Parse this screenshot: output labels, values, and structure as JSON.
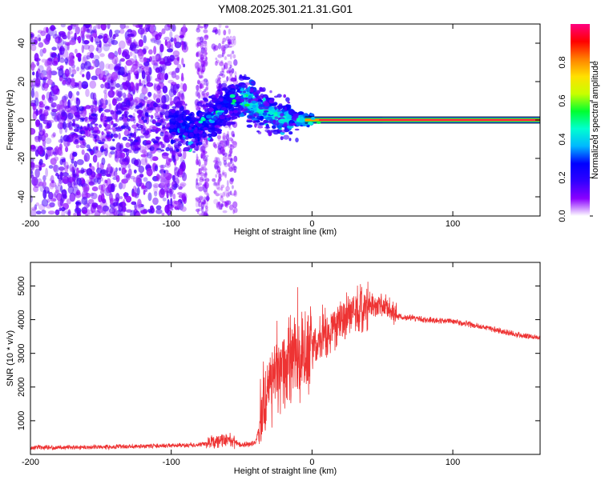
{
  "title": "YM08.2025.301.21.31.G01",
  "chart_data": [
    {
      "type": "heatmap",
      "name": "spectrogram",
      "xlabel": "Height of straight line (km)",
      "ylabel": "Frequency (Hz)",
      "xlim": [
        -200,
        162
      ],
      "ylim": [
        -50,
        50
      ],
      "xticks": [
        -200,
        -100,
        0,
        100
      ],
      "yticks": [
        -40,
        -20,
        0,
        20,
        40
      ],
      "colorbar": {
        "label": "Normalized spectral amplitude",
        "range": [
          0,
          1
        ],
        "ticks": [
          0.0,
          0.2,
          0.4,
          0.6,
          0.8
        ],
        "colormap": [
          "#ffffff",
          "#8a00ff",
          "#3000ff",
          "#0000ff",
          "#00b8ff",
          "#00ffd0",
          "#00ff30",
          "#c8ff00",
          "#ffe000",
          "#ff8000",
          "#ff0000",
          "#ff0080"
        ]
      },
      "regions": [
        {
          "x_range": [
            -200,
            -100
          ],
          "description": "broadband scattered noise",
          "amplitude": 0.1
        },
        {
          "x_range": [
            -70,
            0
          ],
          "center_freq": [
            -5,
            10,
            0
          ],
          "amplitude": 0.35
        },
        {
          "x_range": [
            0,
            162
          ],
          "center_freq": 0,
          "amplitude": 0.95
        }
      ]
    },
    {
      "type": "line",
      "name": "snr",
      "xlabel": "Height of straight line (km)",
      "ylabel": "SNR (10 * v/v)",
      "xlim": [
        -200,
        162
      ],
      "ylim": [
        0,
        5700
      ],
      "xticks": [
        -200,
        -100,
        0,
        100
      ],
      "yticks": [
        1000,
        2000,
        3000,
        4000,
        5000
      ],
      "color": "#ee3333",
      "series": [
        {
          "name": "SNR",
          "x": [
            -200,
            -150,
            -100,
            -80,
            -60,
            -50,
            -45,
            -40,
            -35,
            -30,
            -20,
            -10,
            0,
            10,
            20,
            30,
            40,
            50,
            60,
            70,
            80,
            100,
            120,
            140,
            162
          ],
          "values": [
            200,
            220,
            260,
            280,
            450,
            280,
            300,
            350,
            1300,
            2000,
            2600,
            2800,
            3100,
            3600,
            3900,
            4200,
            4400,
            4450,
            4100,
            4050,
            4000,
            3950,
            3800,
            3600,
            3450
          ]
        }
      ]
    }
  ]
}
